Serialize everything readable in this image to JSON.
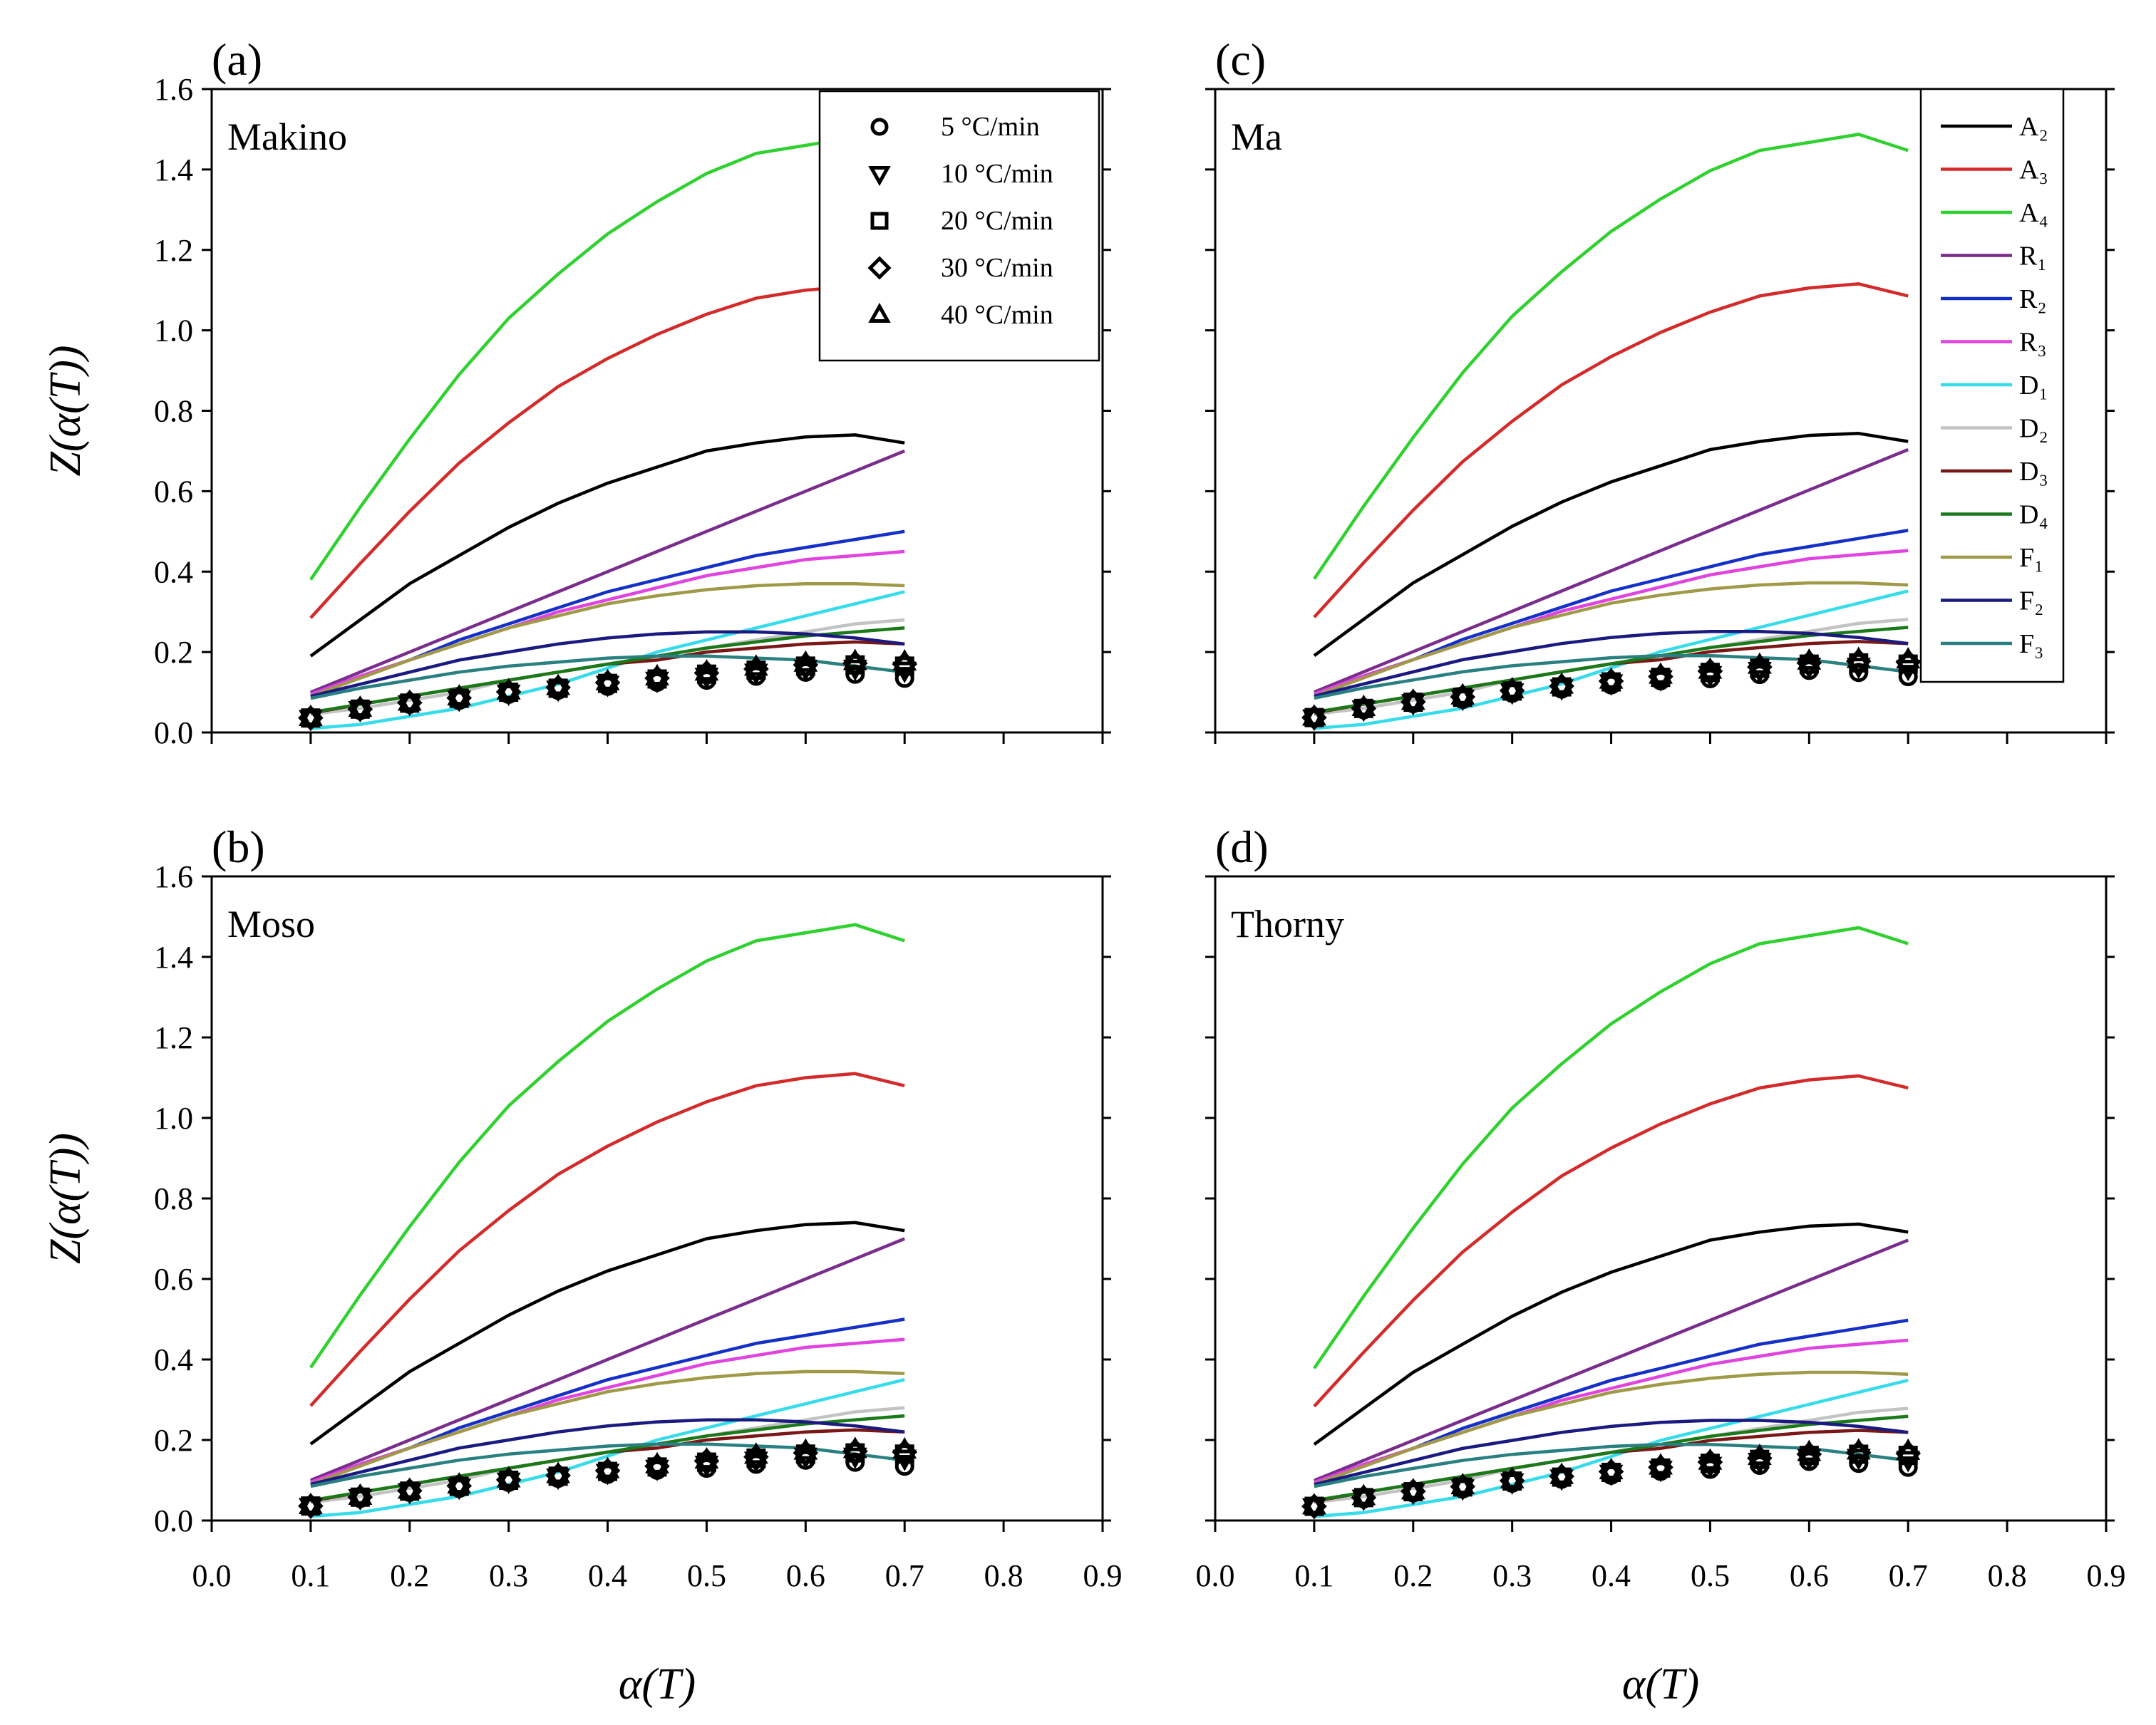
{
  "chart_data": {
    "type": "line",
    "x_axis": {
      "label": "α(T)",
      "range": [
        0.0,
        0.9
      ],
      "ticks": [
        "0.0",
        "0.1",
        "0.2",
        "0.3",
        "0.4",
        "0.5",
        "0.6",
        "0.7",
        "0.8",
        "0.9"
      ]
    },
    "y_axis": {
      "label": "Z(α(T))",
      "range": [
        0.0,
        1.6
      ],
      "ticks": [
        "0.0",
        "0.2",
        "0.4",
        "0.6",
        "0.8",
        "1.0",
        "1.2",
        "1.4",
        "1.6"
      ]
    },
    "panels": [
      {
        "tag": "(a)",
        "name": "Makino",
        "scale": 1.0,
        "exp_scale": 1.0
      },
      {
        "tag": "(c)",
        "name": "Ma",
        "scale": 1.005,
        "exp_scale": 1.03
      },
      {
        "tag": "(b)",
        "name": "Moso",
        "scale": 1.0,
        "exp_scale": 1.0
      },
      {
        "tag": "(d)",
        "name": "Thorny",
        "scale": 0.995,
        "exp_scale": 0.98
      }
    ],
    "model_x": [
      0.1,
      0.15,
      0.2,
      0.25,
      0.3,
      0.35,
      0.4,
      0.45,
      0.5,
      0.55,
      0.6,
      0.65,
      0.7
    ],
    "model_series": [
      {
        "name": "A₂",
        "color": "#000000",
        "values": [
          0.19,
          0.28,
          0.37,
          0.44,
          0.51,
          0.57,
          0.62,
          0.66,
          0.7,
          0.72,
          0.735,
          0.74,
          0.72
        ]
      },
      {
        "name": "A₃",
        "color": "#d42a2a",
        "values": [
          0.285,
          0.42,
          0.55,
          0.67,
          0.77,
          0.86,
          0.93,
          0.99,
          1.04,
          1.08,
          1.1,
          1.11,
          1.08
        ]
      },
      {
        "name": "A₄",
        "color": "#2ed12e",
        "values": [
          0.38,
          0.56,
          0.73,
          0.89,
          1.03,
          1.14,
          1.24,
          1.32,
          1.39,
          1.44,
          1.46,
          1.48,
          1.44
        ]
      },
      {
        "name": "R₁",
        "color": "#7a2d8c",
        "values": [
          0.1,
          0.15,
          0.2,
          0.25,
          0.3,
          0.35,
          0.4,
          0.45,
          0.5,
          0.55,
          0.6,
          0.65,
          0.7
        ]
      },
      {
        "name": "R₂",
        "color": "#1530c8",
        "values": [
          0.095,
          0.14,
          0.18,
          0.23,
          0.27,
          0.31,
          0.35,
          0.38,
          0.41,
          0.44,
          0.46,
          0.48,
          0.5
        ]
      },
      {
        "name": "R₃",
        "color": "#e043e0",
        "values": [
          0.095,
          0.14,
          0.18,
          0.22,
          0.26,
          0.3,
          0.33,
          0.36,
          0.39,
          0.41,
          0.43,
          0.44,
          0.45
        ]
      },
      {
        "name": "D₁",
        "color": "#36dcea",
        "values": [
          0.01,
          0.02,
          0.04,
          0.06,
          0.09,
          0.12,
          0.16,
          0.2,
          0.23,
          0.26,
          0.29,
          0.32,
          0.35
        ]
      },
      {
        "name": "D₂",
        "color": "#c3c3c3",
        "values": [
          0.045,
          0.06,
          0.08,
          0.1,
          0.13,
          0.15,
          0.17,
          0.19,
          0.21,
          0.23,
          0.25,
          0.27,
          0.28
        ]
      },
      {
        "name": "D₃",
        "color": "#7a1818",
        "values": [
          0.048,
          0.07,
          0.09,
          0.11,
          0.13,
          0.15,
          0.17,
          0.18,
          0.2,
          0.21,
          0.22,
          0.225,
          0.22
        ]
      },
      {
        "name": "D₄",
        "color": "#1a7a1a",
        "values": [
          0.05,
          0.07,
          0.09,
          0.11,
          0.13,
          0.15,
          0.17,
          0.19,
          0.21,
          0.225,
          0.24,
          0.25,
          0.26
        ]
      },
      {
        "name": "F₁",
        "color": "#a09a48",
        "values": [
          0.09,
          0.135,
          0.18,
          0.22,
          0.26,
          0.29,
          0.32,
          0.34,
          0.355,
          0.365,
          0.37,
          0.37,
          0.365
        ]
      },
      {
        "name": "F₂",
        "color": "#1a1a80",
        "values": [
          0.09,
          0.12,
          0.15,
          0.18,
          0.2,
          0.22,
          0.235,
          0.245,
          0.25,
          0.25,
          0.245,
          0.235,
          0.22
        ]
      },
      {
        "name": "F₃",
        "color": "#2a8080",
        "values": [
          0.085,
          0.11,
          0.13,
          0.15,
          0.165,
          0.175,
          0.185,
          0.19,
          0.19,
          0.185,
          0.18,
          0.165,
          0.15
        ]
      }
    ],
    "experimental": {
      "x": [
        0.1,
        0.15,
        0.2,
        0.25,
        0.3,
        0.35,
        0.4,
        0.45,
        0.5,
        0.55,
        0.6,
        0.65,
        0.7
      ],
      "series": [
        {
          "name": "5 °C/min",
          "marker": "circle",
          "values": [
            0.035,
            0.055,
            0.07,
            0.08,
            0.095,
            0.105,
            0.115,
            0.125,
            0.13,
            0.14,
            0.15,
            0.145,
            0.135
          ]
        },
        {
          "name": "10 °C/min",
          "marker": "triangle-down",
          "values": [
            0.035,
            0.057,
            0.072,
            0.083,
            0.098,
            0.108,
            0.12,
            0.13,
            0.14,
            0.15,
            0.16,
            0.16,
            0.155
          ]
        },
        {
          "name": "20 °C/min",
          "marker": "square",
          "values": [
            0.036,
            0.058,
            0.073,
            0.085,
            0.1,
            0.11,
            0.122,
            0.133,
            0.145,
            0.155,
            0.165,
            0.168,
            0.165
          ]
        },
        {
          "name": "30 °C/min",
          "marker": "diamond",
          "values": [
            0.036,
            0.058,
            0.074,
            0.086,
            0.101,
            0.112,
            0.124,
            0.135,
            0.148,
            0.158,
            0.168,
            0.172,
            0.17
          ]
        },
        {
          "name": "40 °C/min",
          "marker": "triangle-up",
          "values": [
            0.037,
            0.06,
            0.075,
            0.088,
            0.103,
            0.114,
            0.126,
            0.138,
            0.15,
            0.162,
            0.172,
            0.176,
            0.175
          ]
        }
      ]
    },
    "legend_experimental_panel": 0,
    "legend_models_panel": 1
  }
}
